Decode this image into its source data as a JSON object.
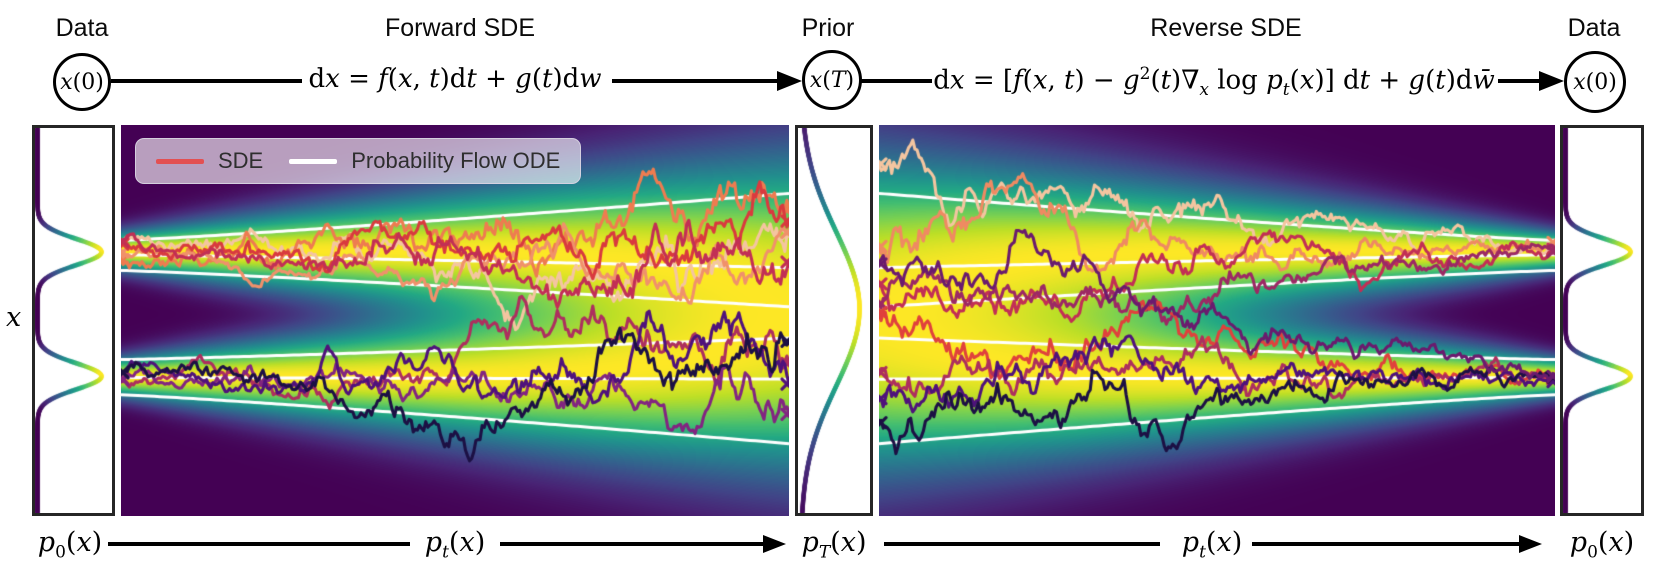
{
  "header": {
    "data_left": "Data",
    "forward_title": "Forward SDE",
    "prior_title": "Prior",
    "reverse_title": "Reverse SDE",
    "data_right": "Data",
    "node_x0_left_html": "<i>x</i>(0)",
    "node_xT_html": "<i>x</i>(<i>T</i>)",
    "node_x0_right_html": "<i>x</i>(0)",
    "eq_forward_html": "d<i>x</i> = <i>f</i>(<i>x</i>, <i>t</i>)d<i>t</i> + <i>g</i>(<i>t</i>)d<i>w</i>",
    "eq_reverse_html": "d<i>x</i> = [<i>f</i>(<i>x</i>, <i>t</i>) − <i>g</i><sup>2</sup>(<i>t</i>)∇<sub><i>x</i></sub> log <i>p</i><sub><i>t</i></sub>(<i>x</i>)] d<i>t</i> + <i>g</i>(<i>t</i>)d<i>w̄</i>"
  },
  "axis": {
    "x_label_html": "<i>x</i>"
  },
  "legend": {
    "sde_label": "SDE",
    "ode_label": "Probability Flow ODE",
    "sde_color": "#e35052",
    "ode_color": "#ffffff"
  },
  "footer": {
    "p0_left_html": "<i>p</i><sub>0</sub>(<i>x</i>)",
    "pt_forward_html": "<i>p</i><sub><i>t</i></sub>(<i>x</i>)",
    "pT_html": "<i>p</i><sub><i>T</i></sub>(<i>x</i>)",
    "pt_reverse_html": "<i>p</i><sub><i>t</i></sub>(<i>x</i>)",
    "p0_right_html": "<i>p</i><sub>0</sub>(<i>x</i>)"
  },
  "figure": {
    "viridis": [
      [
        68,
        1,
        84
      ],
      [
        72,
        36,
        117
      ],
      [
        65,
        68,
        135
      ],
      [
        53,
        95,
        141
      ],
      [
        42,
        120,
        142
      ],
      [
        33,
        144,
        141
      ],
      [
        34,
        168,
        132
      ],
      [
        68,
        190,
        112
      ],
      [
        122,
        209,
        81
      ],
      [
        189,
        223,
        38
      ],
      [
        253,
        231,
        37
      ]
    ],
    "modes": [
      0.322,
      0.645
    ],
    "sigma0": 0.031,
    "sigma1": 0.165,
    "gamma": 0.8,
    "ode_color": "#ffffff",
    "ode_width": 3,
    "ode_curves": [
      [
        0.295,
        0.175
      ],
      [
        0.332,
        0.365
      ],
      [
        0.372,
        0.465
      ],
      [
        0.6,
        0.545
      ],
      [
        0.646,
        0.65
      ],
      [
        0.69,
        0.815
      ]
    ],
    "traj_width": 3.1,
    "traj_steps": 320,
    "marker_size": 5,
    "forward_traj": [
      {
        "color": "#f4c5a0",
        "mode": 0.322,
        "seed": 11,
        "amp": 1.0,
        "bias": -0.06
      },
      {
        "color": "#ee7c50",
        "mode": 0.322,
        "seed": 12,
        "amp": 1.15,
        "bias": -0.12
      },
      {
        "color": "#f0916b",
        "mode": 0.322,
        "seed": 13,
        "amp": 0.9,
        "bias": 0.05
      },
      {
        "color": "#d93a3e",
        "mode": 0.322,
        "seed": 14,
        "amp": 1.0,
        "bias": 0.02
      },
      {
        "color": "#c22f55",
        "mode": 0.322,
        "seed": 15,
        "amp": 1.1,
        "bias": 0.22
      },
      {
        "color": "#ad2f5e",
        "mode": 0.645,
        "seed": 16,
        "amp": 1.0,
        "bias": -0.05
      },
      {
        "color": "#822581",
        "mode": 0.645,
        "seed": 17,
        "amp": 1.0,
        "bias": 0.04
      },
      {
        "color": "#4f127b",
        "mode": 0.645,
        "seed": 18,
        "amp": 1.05,
        "bias": -0.1
      },
      {
        "color": "#1c1044",
        "mode": 0.645,
        "seed": 19,
        "amp": 1.1,
        "bias": 0.08
      }
    ],
    "reverse_traj": [
      {
        "color": "#f4c5a0",
        "mode": 0.322,
        "seed": 21,
        "amp": 1.1,
        "off": -0.19
      },
      {
        "color": "#ef8a62",
        "mode": 0.322,
        "seed": 22,
        "amp": 1.0,
        "off": -0.02
      },
      {
        "color": "#c22f55",
        "mode": 0.322,
        "seed": 23,
        "amp": 1.0,
        "off": 0.07
      },
      {
        "color": "#9c2964",
        "mode": 0.322,
        "seed": 24,
        "amp": 0.95,
        "off": 0.1
      },
      {
        "color": "#e0413c",
        "mode": 0.645,
        "seed": 25,
        "amp": 1.05,
        "off": -0.17
      },
      {
        "color": "#ad2f5e",
        "mode": 0.645,
        "seed": 26,
        "amp": 1.0,
        "off": -0.03
      },
      {
        "color": "#4f127b",
        "mode": 0.645,
        "seed": 27,
        "amp": 1.0,
        "off": 0.02
      },
      {
        "color": "#1c1044",
        "mode": 0.645,
        "seed": 28,
        "amp": 1.1,
        "off": 0.12
      },
      {
        "color": "#6a1b6e",
        "mode": 0.645,
        "seed": 29,
        "amp": 0.95,
        "off": -0.3
      }
    ],
    "marginals": {
      "p0": {
        "modes": [
          0.322,
          0.645
        ],
        "sigma": 0.034
      },
      "pT": {
        "modes": [
          0.47
        ],
        "sigma": 0.2
      }
    }
  }
}
